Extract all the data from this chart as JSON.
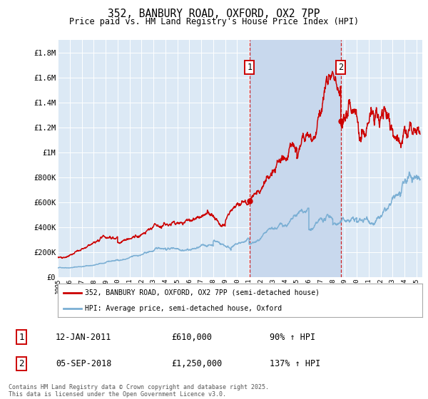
{
  "title": "352, BANBURY ROAD, OXFORD, OX2 7PP",
  "subtitle": "Price paid vs. HM Land Registry's House Price Index (HPI)",
  "ylim": [
    0,
    1900000
  ],
  "yticks": [
    0,
    200000,
    400000,
    600000,
    800000,
    1000000,
    1200000,
    1400000,
    1600000,
    1800000
  ],
  "ytick_labels": [
    "£0",
    "£200K",
    "£400K",
    "£600K",
    "£800K",
    "£1M",
    "£1.2M",
    "£1.4M",
    "£1.6M",
    "£1.8M"
  ],
  "background_color": "#dce9f5",
  "highlight_color": "#c8d8ed",
  "sale1_date": "12-JAN-2011",
  "sale1_price": 610000,
  "sale1_pct": "90% ↑ HPI",
  "sale2_date": "05-SEP-2018",
  "sale2_price": 1250000,
  "sale2_pct": "137% ↑ HPI",
  "legend_label_property": "352, BANBURY ROAD, OXFORD, OX2 7PP (semi-detached house)",
  "legend_label_hpi": "HPI: Average price, semi-detached house, Oxford",
  "footer": "Contains HM Land Registry data © Crown copyright and database right 2025.\nThis data is licensed under the Open Government Licence v3.0.",
  "line_color_property": "#cc0000",
  "line_color_hpi": "#7bafd4",
  "vline_color": "#cc0000",
  "marker1_x": 2011.04,
  "marker2_x": 2018.67,
  "xmin": 1995,
  "xmax": 2025.5
}
